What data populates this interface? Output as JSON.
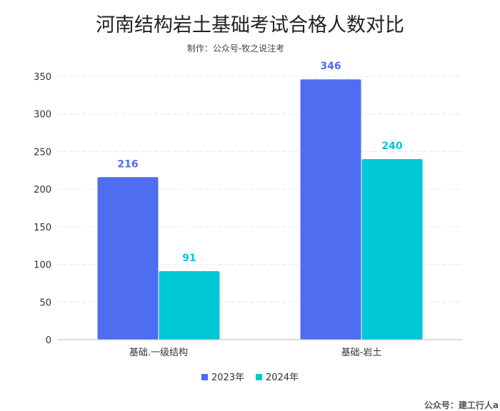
{
  "chart_data": {
    "type": "bar",
    "title": "河南结构岩土基础考试合格人数对比",
    "subtitle": "制作：公众号-牧之说注考",
    "categories": [
      "基础.一级结构",
      "基础-岩土"
    ],
    "series": [
      {
        "name": "2023年",
        "values": [
          216,
          346
        ],
        "color": "#4f6df0"
      },
      {
        "name": "2024年",
        "values": [
          91,
          240
        ],
        "color": "#00c8d7"
      }
    ],
    "ylim": [
      0,
      350
    ],
    "yticks": [
      0,
      50,
      100,
      150,
      200,
      250,
      300,
      350
    ],
    "grid": true,
    "legend_position": "bottom"
  },
  "watermark": "公众号：建工行人a"
}
